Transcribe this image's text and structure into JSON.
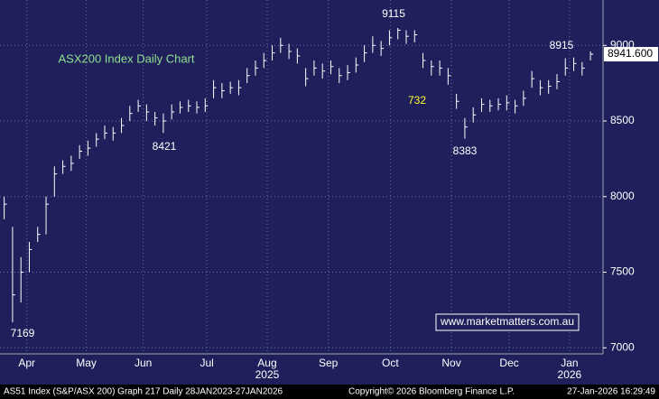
{
  "chart_data": {
    "type": "ohlc",
    "title": "ASX200 Index Daily Chart",
    "annotations": [
      "9115",
      "8421",
      "8383",
      "7169",
      "732",
      "8915"
    ],
    "watermark": "www.marketmatters.com.au",
    "footer": {
      "left": "AS51 Index (S&P/ASX 200) Graph 217 Daily 28JAN2023-27JAN2026",
      "middle": "Copyright© 2026 Bloomberg Finance L.P.",
      "right": "27-Jan-2026 16:29:49"
    },
    "x": [
      0,
      1,
      2,
      3,
      4,
      5,
      6,
      7,
      8,
      9,
      10,
      11,
      12,
      13,
      14,
      15,
      16,
      17,
      18,
      19,
      20,
      21,
      22,
      23,
      24,
      25,
      26,
      27,
      28,
      29,
      30,
      31,
      32,
      33,
      34,
      35,
      36,
      37,
      38,
      39,
      40,
      41,
      42,
      43,
      44,
      45,
      46,
      47,
      48,
      49,
      50,
      51,
      52,
      53,
      54,
      55,
      56,
      57,
      58,
      59,
      60,
      61,
      62,
      63,
      64,
      65,
      66,
      67,
      68,
      69,
      70
    ],
    "series": [
      {
        "name": "High",
        "values": [
          8000,
          7800,
          7600,
          7700,
          7800,
          8000,
          8200,
          8240,
          8270,
          8340,
          8370,
          8420,
          8470,
          8460,
          8520,
          8600,
          8640,
          8610,
          8560,
          8550,
          8610,
          8630,
          8640,
          8630,
          8650,
          8770,
          8750,
          8760,
          8770,
          8850,
          8900,
          8950,
          9000,
          9050,
          9010,
          8980,
          8850,
          8900,
          8880,
          8900,
          8850,
          8870,
          8920,
          9000,
          9060,
          9030,
          9100,
          9115,
          9100,
          9100,
          8950,
          8900,
          8900,
          8850,
          8680,
          8520,
          8590,
          8650,
          8640,
          8650,
          8670,
          8640,
          8700,
          8830,
          8770,
          8770,
          8810,
          8915,
          8920,
          8890,
          8960
        ]
      },
      {
        "name": "Low",
        "values": [
          7850,
          7169,
          7300,
          7500,
          7700,
          7750,
          8000,
          8150,
          8170,
          8250,
          8270,
          8330,
          8380,
          8370,
          8420,
          8500,
          8560,
          8500,
          8470,
          8421,
          8510,
          8550,
          8560,
          8550,
          8560,
          8650,
          8650,
          8680,
          8670,
          8750,
          8800,
          8850,
          8900,
          8950,
          8910,
          8880,
          8730,
          8800,
          8780,
          8810,
          8750,
          8770,
          8820,
          8890,
          8950,
          8930,
          9000,
          9040,
          9010,
          9020,
          8850,
          8800,
          8800,
          8740,
          8580,
          8383,
          8490,
          8560,
          8560,
          8570,
          8570,
          8550,
          8600,
          8720,
          8670,
          8680,
          8710,
          8800,
          8830,
          8800,
          8900
        ]
      },
      {
        "name": "Close",
        "values": [
          7950,
          7350,
          7500,
          7650,
          7750,
          7950,
          8150,
          8200,
          8220,
          8300,
          8320,
          8380,
          8420,
          8420,
          8470,
          8550,
          8600,
          8560,
          8520,
          8500,
          8560,
          8590,
          8600,
          8590,
          8600,
          8720,
          8700,
          8720,
          8720,
          8800,
          8850,
          8900,
          8950,
          9000,
          8960,
          8930,
          8780,
          8850,
          8830,
          8860,
          8800,
          8820,
          8870,
          8950,
          9000,
          8980,
          9050,
          9100,
          9060,
          9070,
          8900,
          8860,
          8850,
          8800,
          8630,
          8460,
          8540,
          8610,
          8600,
          8610,
          8620,
          8600,
          8650,
          8780,
          8720,
          8730,
          8760,
          8850,
          8880,
          8850,
          8941.6
        ]
      }
    ],
    "last_price": 8941.6,
    "last_price_label": "8941.600",
    "color": "#ffffff",
    "xlim": [
      -0.5,
      71.5
    ],
    "xticks": [
      {
        "value": 2.7,
        "label": "Apr"
      },
      {
        "value": 9.8,
        "label": "May"
      },
      {
        "value": 16.6,
        "label": "Jun"
      },
      {
        "value": 24.2,
        "label": "Jul"
      },
      {
        "value": 31.4,
        "label": "Aug"
      },
      {
        "value": 38.7,
        "label": "Sep"
      },
      {
        "value": 46.1,
        "label": "Oct"
      },
      {
        "value": 53.4,
        "label": "Nov"
      },
      {
        "value": 60.3,
        "label": "Dec"
      },
      {
        "value": 67.5,
        "label": "Jan"
      }
    ],
    "year_ticks": [
      {
        "value": 31.4,
        "label": "2025"
      },
      {
        "value": 67.5,
        "label": "2026"
      }
    ],
    "ylim": [
      6960,
      9300
    ],
    "yticks": [
      7000,
      7500,
      8000,
      8500,
      9000
    ],
    "grid": true
  }
}
